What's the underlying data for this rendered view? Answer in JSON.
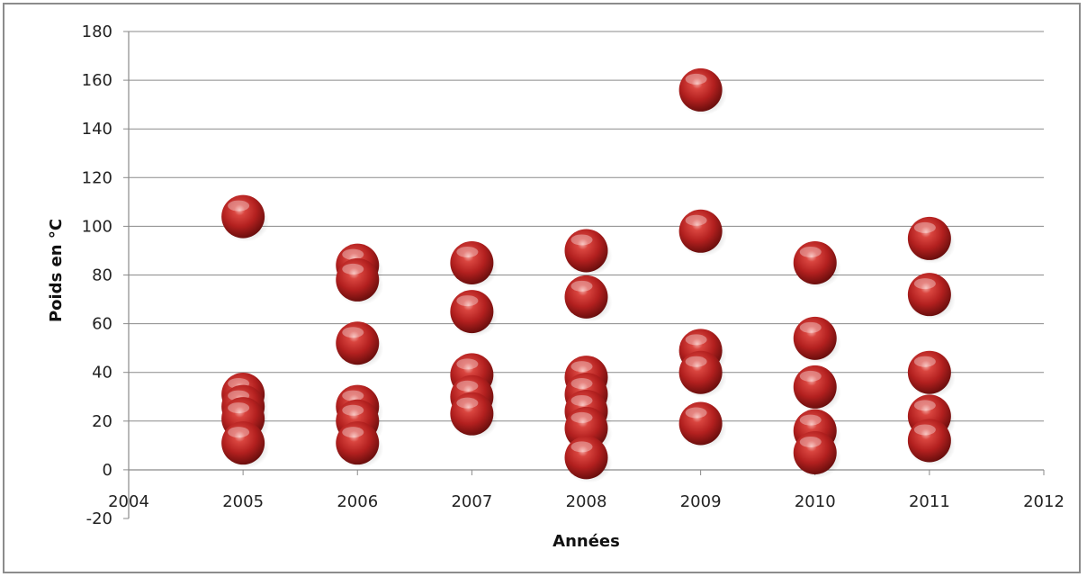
{
  "chart_data": {
    "type": "scatter",
    "title": "",
    "xlabel": "Années",
    "ylabel": "Poids en °C",
    "xlim": [
      2004,
      2012
    ],
    "ylim": [
      -20,
      180
    ],
    "x_ticks": [
      "2004",
      "2005",
      "2006",
      "2007",
      "2008",
      "2009",
      "2010",
      "2011",
      "2012"
    ],
    "y_ticks": [
      "180",
      "160",
      "140",
      "120",
      "100",
      "80",
      "60",
      "40",
      "20",
      "0",
      "-20"
    ],
    "grid": true,
    "legend": "none",
    "marker_color": "#b3201f",
    "series": [
      {
        "points": [
          {
            "x": 2005,
            "y": 104
          },
          {
            "x": 2005,
            "y": 31
          },
          {
            "x": 2005,
            "y": 26
          },
          {
            "x": 2005,
            "y": 21
          },
          {
            "x": 2005,
            "y": 11
          },
          {
            "x": 2006,
            "y": 84
          },
          {
            "x": 2006,
            "y": 78
          },
          {
            "x": 2006,
            "y": 52
          },
          {
            "x": 2006,
            "y": 26
          },
          {
            "x": 2006,
            "y": 20
          },
          {
            "x": 2006,
            "y": 11
          },
          {
            "x": 2007,
            "y": 85
          },
          {
            "x": 2007,
            "y": 65
          },
          {
            "x": 2007,
            "y": 39
          },
          {
            "x": 2007,
            "y": 30
          },
          {
            "x": 2007,
            "y": 23
          },
          {
            "x": 2008,
            "y": 90
          },
          {
            "x": 2008,
            "y": 71
          },
          {
            "x": 2008,
            "y": 38
          },
          {
            "x": 2008,
            "y": 31
          },
          {
            "x": 2008,
            "y": 24
          },
          {
            "x": 2008,
            "y": 17
          },
          {
            "x": 2008,
            "y": 5
          },
          {
            "x": 2009,
            "y": 156
          },
          {
            "x": 2009,
            "y": 98
          },
          {
            "x": 2009,
            "y": 49
          },
          {
            "x": 2009,
            "y": 40
          },
          {
            "x": 2009,
            "y": 19
          },
          {
            "x": 2010,
            "y": 85
          },
          {
            "x": 2010,
            "y": 54
          },
          {
            "x": 2010,
            "y": 34
          },
          {
            "x": 2010,
            "y": 16
          },
          {
            "x": 2010,
            "y": 7
          },
          {
            "x": 2011,
            "y": 95
          },
          {
            "x": 2011,
            "y": 72
          },
          {
            "x": 2011,
            "y": 40
          },
          {
            "x": 2011,
            "y": 22
          },
          {
            "x": 2011,
            "y": 12
          }
        ]
      }
    ]
  }
}
